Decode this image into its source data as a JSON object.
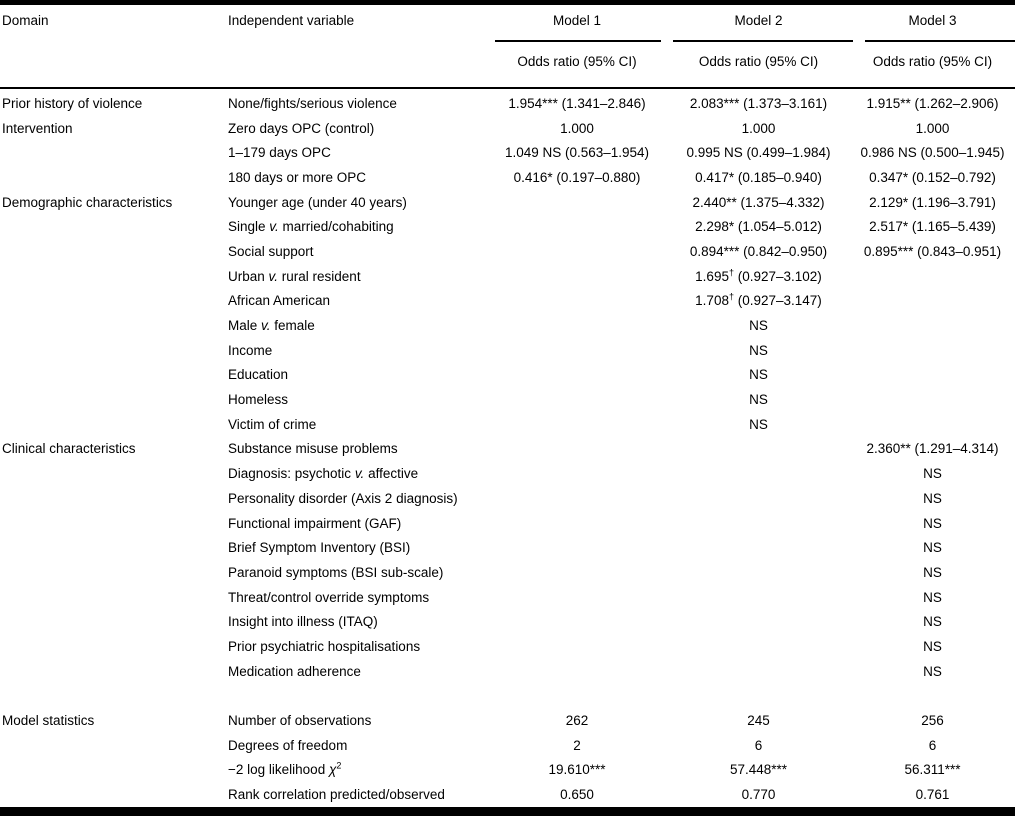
{
  "table": {
    "columns": [
      "Domain",
      "Independent variable",
      "Model 1",
      "Model 2",
      "Model 3"
    ],
    "subheader": "Odds ratio (95% CI)",
    "rows": [
      {
        "domain": "Prior history of violence",
        "variable": "None/fights/serious violence",
        "m1": "1.954*** (1.341–2.846)",
        "m2": "2.083*** (1.373–3.161)",
        "m3": "1.915** (1.262–2.906)"
      },
      {
        "domain": "Intervention",
        "variable": "Zero days OPC (control)",
        "m1": "1.000",
        "m2": "1.000",
        "m3": "1.000"
      },
      {
        "domain": "",
        "variable": "1–179 days OPC",
        "m1": "1.049 NS (0.563–1.954)",
        "m2": "0.995 NS (0.499–1.984)",
        "m3": "0.986 NS (0.500–1.945)"
      },
      {
        "domain": "",
        "variable": "180 days or more OPC",
        "m1": "0.416* (0.197–0.880)",
        "m2": "0.417* (0.185–0.940)",
        "m3": "0.347* (0.152–0.792)"
      },
      {
        "domain": "Demographic characteristics",
        "variable": "Younger age (under 40 years)",
        "m1": "",
        "m2": "2.440** (1.375–4.332)",
        "m3": "2.129* (1.196–3.791)"
      },
      {
        "domain": "",
        "variable": "Single v. married/cohabiting",
        "m1": "",
        "m2": "2.298* (1.054–5.012)",
        "m3": "2.517* (1.165–5.439)"
      },
      {
        "domain": "",
        "variable": "Social support",
        "m1": "",
        "m2": "0.894*** (0.842–0.950)",
        "m3": "0.895*** (0.843–0.951)"
      },
      {
        "domain": "",
        "variable": "Urban v. rural resident",
        "m1": "",
        "m2": "1.695† (0.927–3.102)",
        "m3": ""
      },
      {
        "domain": "",
        "variable": "African American",
        "m1": "",
        "m2": "1.708† (0.927–3.147)",
        "m3": ""
      },
      {
        "domain": "",
        "variable": "Male v. female",
        "m1": "",
        "m2": "NS",
        "m3": ""
      },
      {
        "domain": "",
        "variable": "Income",
        "m1": "",
        "m2": "NS",
        "m3": ""
      },
      {
        "domain": "",
        "variable": "Education",
        "m1": "",
        "m2": "NS",
        "m3": ""
      },
      {
        "domain": "",
        "variable": "Homeless",
        "m1": "",
        "m2": "NS",
        "m3": ""
      },
      {
        "domain": "",
        "variable": "Victim of crime",
        "m1": "",
        "m2": "NS",
        "m3": ""
      },
      {
        "domain": "Clinical characteristics",
        "variable": "Substance misuse problems",
        "m1": "",
        "m2": "",
        "m3": "2.360** (1.291–4.314)"
      },
      {
        "domain": "",
        "variable": "Diagnosis: psychotic v. affective",
        "m1": "",
        "m2": "",
        "m3": "NS"
      },
      {
        "domain": "",
        "variable": "Personality disorder (Axis 2 diagnosis)",
        "m1": "",
        "m2": "",
        "m3": "NS"
      },
      {
        "domain": "",
        "variable": "Functional impairment (GAF)",
        "m1": "",
        "m2": "",
        "m3": "NS"
      },
      {
        "domain": "",
        "variable": "Brief Symptom Inventory (BSI)",
        "m1": "",
        "m2": "",
        "m3": "NS"
      },
      {
        "domain": "",
        "variable": "Paranoid symptoms (BSI sub-scale)",
        "m1": "",
        "m2": "",
        "m3": "NS"
      },
      {
        "domain": "",
        "variable": "Threat/control override symptoms",
        "m1": "",
        "m2": "",
        "m3": "NS"
      },
      {
        "domain": "",
        "variable": "Insight into illness (ITAQ)",
        "m1": "",
        "m2": "",
        "m3": "NS"
      },
      {
        "domain": "",
        "variable": "Prior psychiatric hospitalisations",
        "m1": "",
        "m2": "",
        "m3": "NS"
      },
      {
        "domain": "",
        "variable": "Medication adherence",
        "m1": "",
        "m2": "",
        "m3": "NS"
      },
      {
        "spacer": true
      },
      {
        "domain": "Model statistics",
        "variable": "Number of observations",
        "m1": "262",
        "m2": "245",
        "m3": "256"
      },
      {
        "domain": "",
        "variable": "Degrees of freedom",
        "m1": "2",
        "m2": "6",
        "m3": "6"
      },
      {
        "domain": "",
        "variable": "−2 log likelihood χ²",
        "m1": "19.610***",
        "m2": "57.448***",
        "m3": "56.311***"
      },
      {
        "domain": "",
        "variable": "Rank correlation predicted/observed",
        "m1": "0.650",
        "m2": "0.770",
        "m3": "0.761"
      }
    ]
  }
}
